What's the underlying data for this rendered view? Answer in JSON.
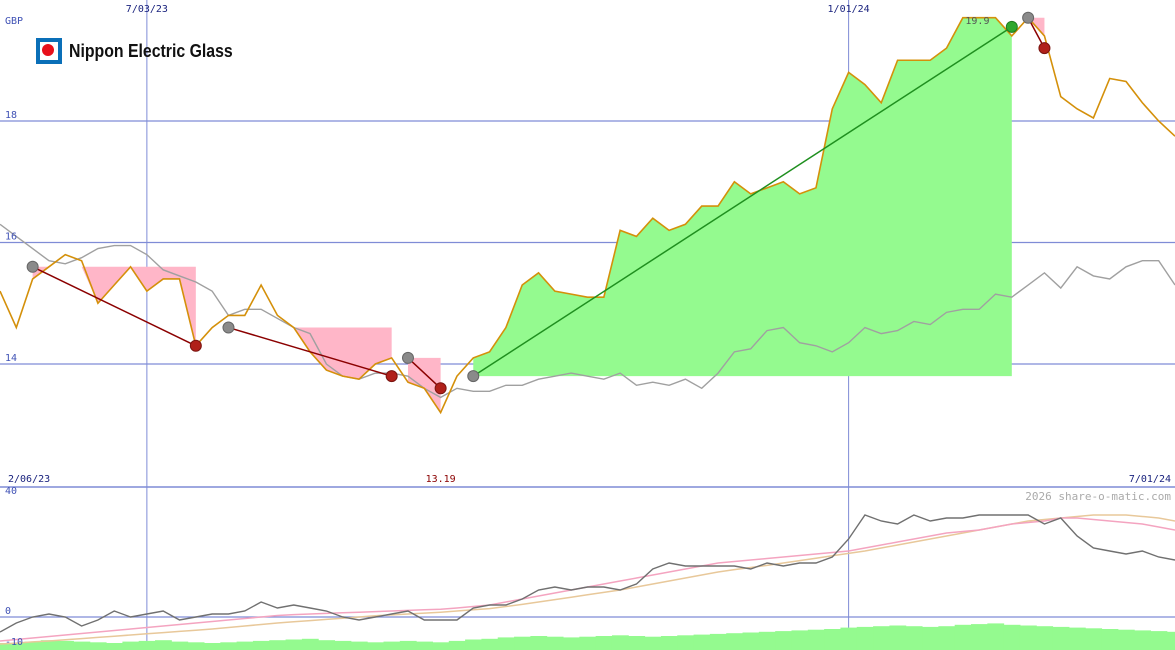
{
  "brand": {
    "name": "Nippon Electric Glass",
    "logo_colors": {
      "square": "#0a6fb8",
      "dot": "#e8101a"
    }
  },
  "watermark": "2026 share-o-matic.com",
  "chart_data": [
    {
      "type": "line",
      "panel": "price",
      "currency_label": "GBP",
      "y_ticks": [
        "18",
        "16",
        "14"
      ],
      "ylim": [
        12.3,
        20.0
      ],
      "x_top_labels": [
        "7/03/23",
        "1/01/24"
      ],
      "x_bottom_labels": {
        "start": "2/06/23",
        "end": "7/01/24"
      },
      "min_label": "13.19",
      "max_label": "19.9",
      "x": [
        "2023-01-02",
        "2023-01-09",
        "2023-01-16",
        "2023-01-23",
        "2023-01-30",
        "2023-02-06",
        "2023-02-13",
        "2023-02-20",
        "2023-02-27",
        "2023-03-06",
        "2023-03-13",
        "2023-03-20",
        "2023-03-27",
        "2023-04-03",
        "2023-04-10",
        "2023-04-17",
        "2023-04-24",
        "2023-05-01",
        "2023-05-08",
        "2023-05-15",
        "2023-05-22",
        "2023-05-29",
        "2023-06-05",
        "2023-06-12",
        "2023-06-19",
        "2023-06-26",
        "2023-07-03",
        "2023-07-10",
        "2023-07-17",
        "2023-07-24",
        "2023-07-31",
        "2023-08-07",
        "2023-08-14",
        "2023-08-21",
        "2023-08-28",
        "2023-09-04",
        "2023-09-11",
        "2023-09-18",
        "2023-09-25",
        "2023-10-02",
        "2023-10-09",
        "2023-10-16",
        "2023-10-23",
        "2023-10-30",
        "2023-11-06",
        "2023-11-13",
        "2023-11-20",
        "2023-11-27",
        "2023-12-04",
        "2023-12-11",
        "2023-12-18",
        "2023-12-25",
        "2024-01-01",
        "2024-01-08",
        "2024-01-15",
        "2024-01-22",
        "2024-01-29",
        "2024-02-05",
        "2024-02-12",
        "2024-02-19",
        "2024-02-26",
        "2024-03-04",
        "2024-03-11",
        "2024-03-18",
        "2024-03-25",
        "2024-04-01",
        "2024-04-08",
        "2024-04-15",
        "2024-04-22",
        "2024-04-29",
        "2024-05-06",
        "2024-05-13",
        "2024-05-20"
      ],
      "series": [
        {
          "color": "#d4900a",
          "values": [
            15.2,
            14.6,
            15.4,
            15.6,
            15.8,
            15.7,
            15.0,
            15.3,
            15.6,
            15.2,
            15.4,
            15.4,
            14.3,
            14.6,
            14.8,
            14.8,
            15.3,
            14.8,
            14.6,
            14.2,
            13.9,
            13.8,
            13.75,
            14.0,
            14.1,
            13.7,
            13.6,
            13.2,
            13.8,
            14.1,
            14.2,
            14.6,
            15.3,
            15.5,
            15.2,
            15.15,
            15.1,
            15.1,
            16.2,
            16.1,
            16.4,
            16.2,
            16.3,
            16.6,
            16.6,
            17.0,
            16.8,
            16.9,
            17.0,
            16.8,
            16.9,
            18.2,
            18.8,
            18.6,
            18.3,
            19.0,
            19.0,
            19.0,
            19.2,
            19.7,
            19.7,
            19.7,
            19.4,
            19.7,
            19.4,
            18.4,
            18.2,
            18.05,
            18.7,
            18.65,
            18.3,
            18.0,
            17.75
          ]
        },
        {
          "color": "#a0a0a0",
          "values": [
            16.3,
            16.1,
            15.9,
            15.7,
            15.65,
            15.75,
            15.9,
            15.95,
            15.95,
            15.8,
            15.55,
            15.45,
            15.35,
            15.2,
            14.8,
            14.9,
            14.9,
            14.75,
            14.6,
            14.5,
            14.0,
            13.8,
            13.75,
            13.85,
            13.85,
            13.8,
            13.6,
            13.45,
            13.6,
            13.55,
            13.55,
            13.65,
            13.65,
            13.75,
            13.8,
            13.85,
            13.8,
            13.75,
            13.85,
            13.65,
            13.7,
            13.65,
            13.75,
            13.6,
            13.85,
            14.2,
            14.25,
            14.55,
            14.6,
            14.35,
            14.3,
            14.2,
            14.35,
            14.6,
            14.5,
            14.55,
            14.7,
            14.65,
            14.85,
            14.9,
            14.9,
            15.15,
            15.1,
            15.3,
            15.5,
            15.25,
            15.6,
            15.45,
            15.4,
            15.6,
            15.7,
            15.7,
            15.3
          ]
        }
      ],
      "trades": [
        {
          "entry_x": "2023-01-16",
          "entry_y": 15.6,
          "exit_x": "2023-03-27",
          "exit_y": 14.3,
          "result": "loss",
          "color": "#8b0000"
        },
        {
          "entry_x": "2023-04-10",
          "entry_y": 14.6,
          "exit_x": "2023-06-19",
          "exit_y": 13.8,
          "result": "loss",
          "color": "#8b0000"
        },
        {
          "entry_x": "2023-06-26",
          "entry_y": 14.1,
          "exit_x": "2023-07-10",
          "exit_y": 13.6,
          "result": "loss",
          "color": "#8b0000"
        },
        {
          "entry_x": "2023-07-24",
          "entry_y": 13.8,
          "exit_x": "2024-03-11",
          "exit_y": 19.55,
          "result": "gain",
          "color": "#1f8f1f"
        },
        {
          "entry_x": "2024-03-18",
          "entry_y": 19.7,
          "exit_x": "2024-03-25",
          "exit_y": 19.2,
          "result": "loss",
          "color": "#8b0000"
        }
      ],
      "colors": {
        "gain_fill": "#94fa8f",
        "loss_fill": "#ffb6c8",
        "grid": "#7f8cd6"
      }
    },
    {
      "type": "line",
      "panel": "indicator",
      "y_ticks": [
        "40",
        "0",
        "-10"
      ],
      "ylim": [
        -10,
        40
      ],
      "series": [
        {
          "color": "#707070",
          "values": [
            -5,
            -2,
            0,
            1,
            0,
            -3,
            -1,
            2,
            0,
            1,
            2,
            -1,
            0,
            1,
            1,
            2,
            5,
            3,
            4,
            3,
            2,
            0,
            -1,
            0,
            1,
            2,
            -1,
            -1,
            -1,
            3,
            4,
            4,
            6,
            9,
            10,
            9,
            10,
            10,
            9,
            11,
            16,
            18,
            17,
            17,
            17,
            17,
            16,
            18,
            17,
            18,
            18,
            20,
            26,
            34,
            32,
            31,
            34,
            32,
            33,
            33,
            34,
            34,
            34,
            34,
            31,
            33,
            27,
            23,
            22,
            21,
            22,
            20,
            19
          ]
        },
        {
          "color": "#f4a4c0",
          "values": [
            -8,
            -7.5,
            -7,
            -6.5,
            -6,
            -5.5,
            -5,
            -4.5,
            -4,
            -3.5,
            -3,
            -2.5,
            -2,
            -1.5,
            -1,
            -0.5,
            0,
            0.5,
            0.8,
            1,
            1.2,
            1.4,
            1.6,
            1.8,
            2,
            2.2,
            2.4,
            2.6,
            3,
            3.5,
            4,
            5,
            6,
            7,
            8,
            9,
            10,
            11,
            12,
            13,
            14,
            15,
            16,
            17,
            18,
            18.5,
            19,
            19.5,
            20,
            20.5,
            21,
            21.5,
            22,
            23,
            24,
            25,
            26,
            27,
            28,
            28.5,
            29,
            30,
            31,
            31.5,
            32,
            33,
            33,
            32.5,
            32,
            31.5,
            31,
            30,
            29
          ]
        },
        {
          "color": "#e8c89a",
          "values": [
            -9,
            -8.7,
            -8.3,
            -8,
            -7.6,
            -7.2,
            -6.8,
            -6.4,
            -6,
            -5.6,
            -5.2,
            -4.8,
            -4.4,
            -4,
            -3.5,
            -3,
            -2.5,
            -2,
            -1.6,
            -1.2,
            -0.8,
            -0.4,
            0,
            0.4,
            0.7,
            1,
            1.3,
            1.6,
            2,
            2.4,
            2.8,
            3.5,
            4.2,
            5,
            5.8,
            6.6,
            7.4,
            8.2,
            9,
            10,
            11,
            12,
            13,
            14,
            15,
            15.8,
            16.5,
            17.2,
            18,
            18.8,
            19.6,
            20.4,
            21.2,
            22,
            23,
            24,
            25,
            26,
            27,
            28,
            29,
            30,
            31,
            32,
            32.5,
            33,
            33.5,
            34,
            34,
            34,
            33.5,
            33,
            32
          ]
        }
      ],
      "volume": [
        1,
        1,
        1.2,
        1.4,
        1.3,
        1.2,
        1.1,
        1,
        1.2,
        1.3,
        1.4,
        1.2,
        1.1,
        1,
        1.1,
        1.2,
        1.3,
        1.4,
        1.5,
        1.6,
        1.4,
        1.3,
        1.2,
        1.1,
        1.2,
        1.3,
        1.2,
        1.1,
        1.3,
        1.5,
        1.6,
        1.8,
        1.9,
        2,
        1.9,
        1.8,
        1.9,
        2,
        2.1,
        2,
        1.9,
        2,
        2.1,
        2.2,
        2.3,
        2.4,
        2.5,
        2.6,
        2.7,
        2.8,
        2.9,
        3,
        3.2,
        3.3,
        3.4,
        3.5,
        3.4,
        3.3,
        3.4,
        3.6,
        3.7,
        3.8,
        3.6,
        3.5,
        3.4,
        3.3,
        3.2,
        3.1,
        3,
        2.9,
        2.8,
        2.7,
        2.6
      ],
      "volume_color": "#94fa8f"
    }
  ]
}
